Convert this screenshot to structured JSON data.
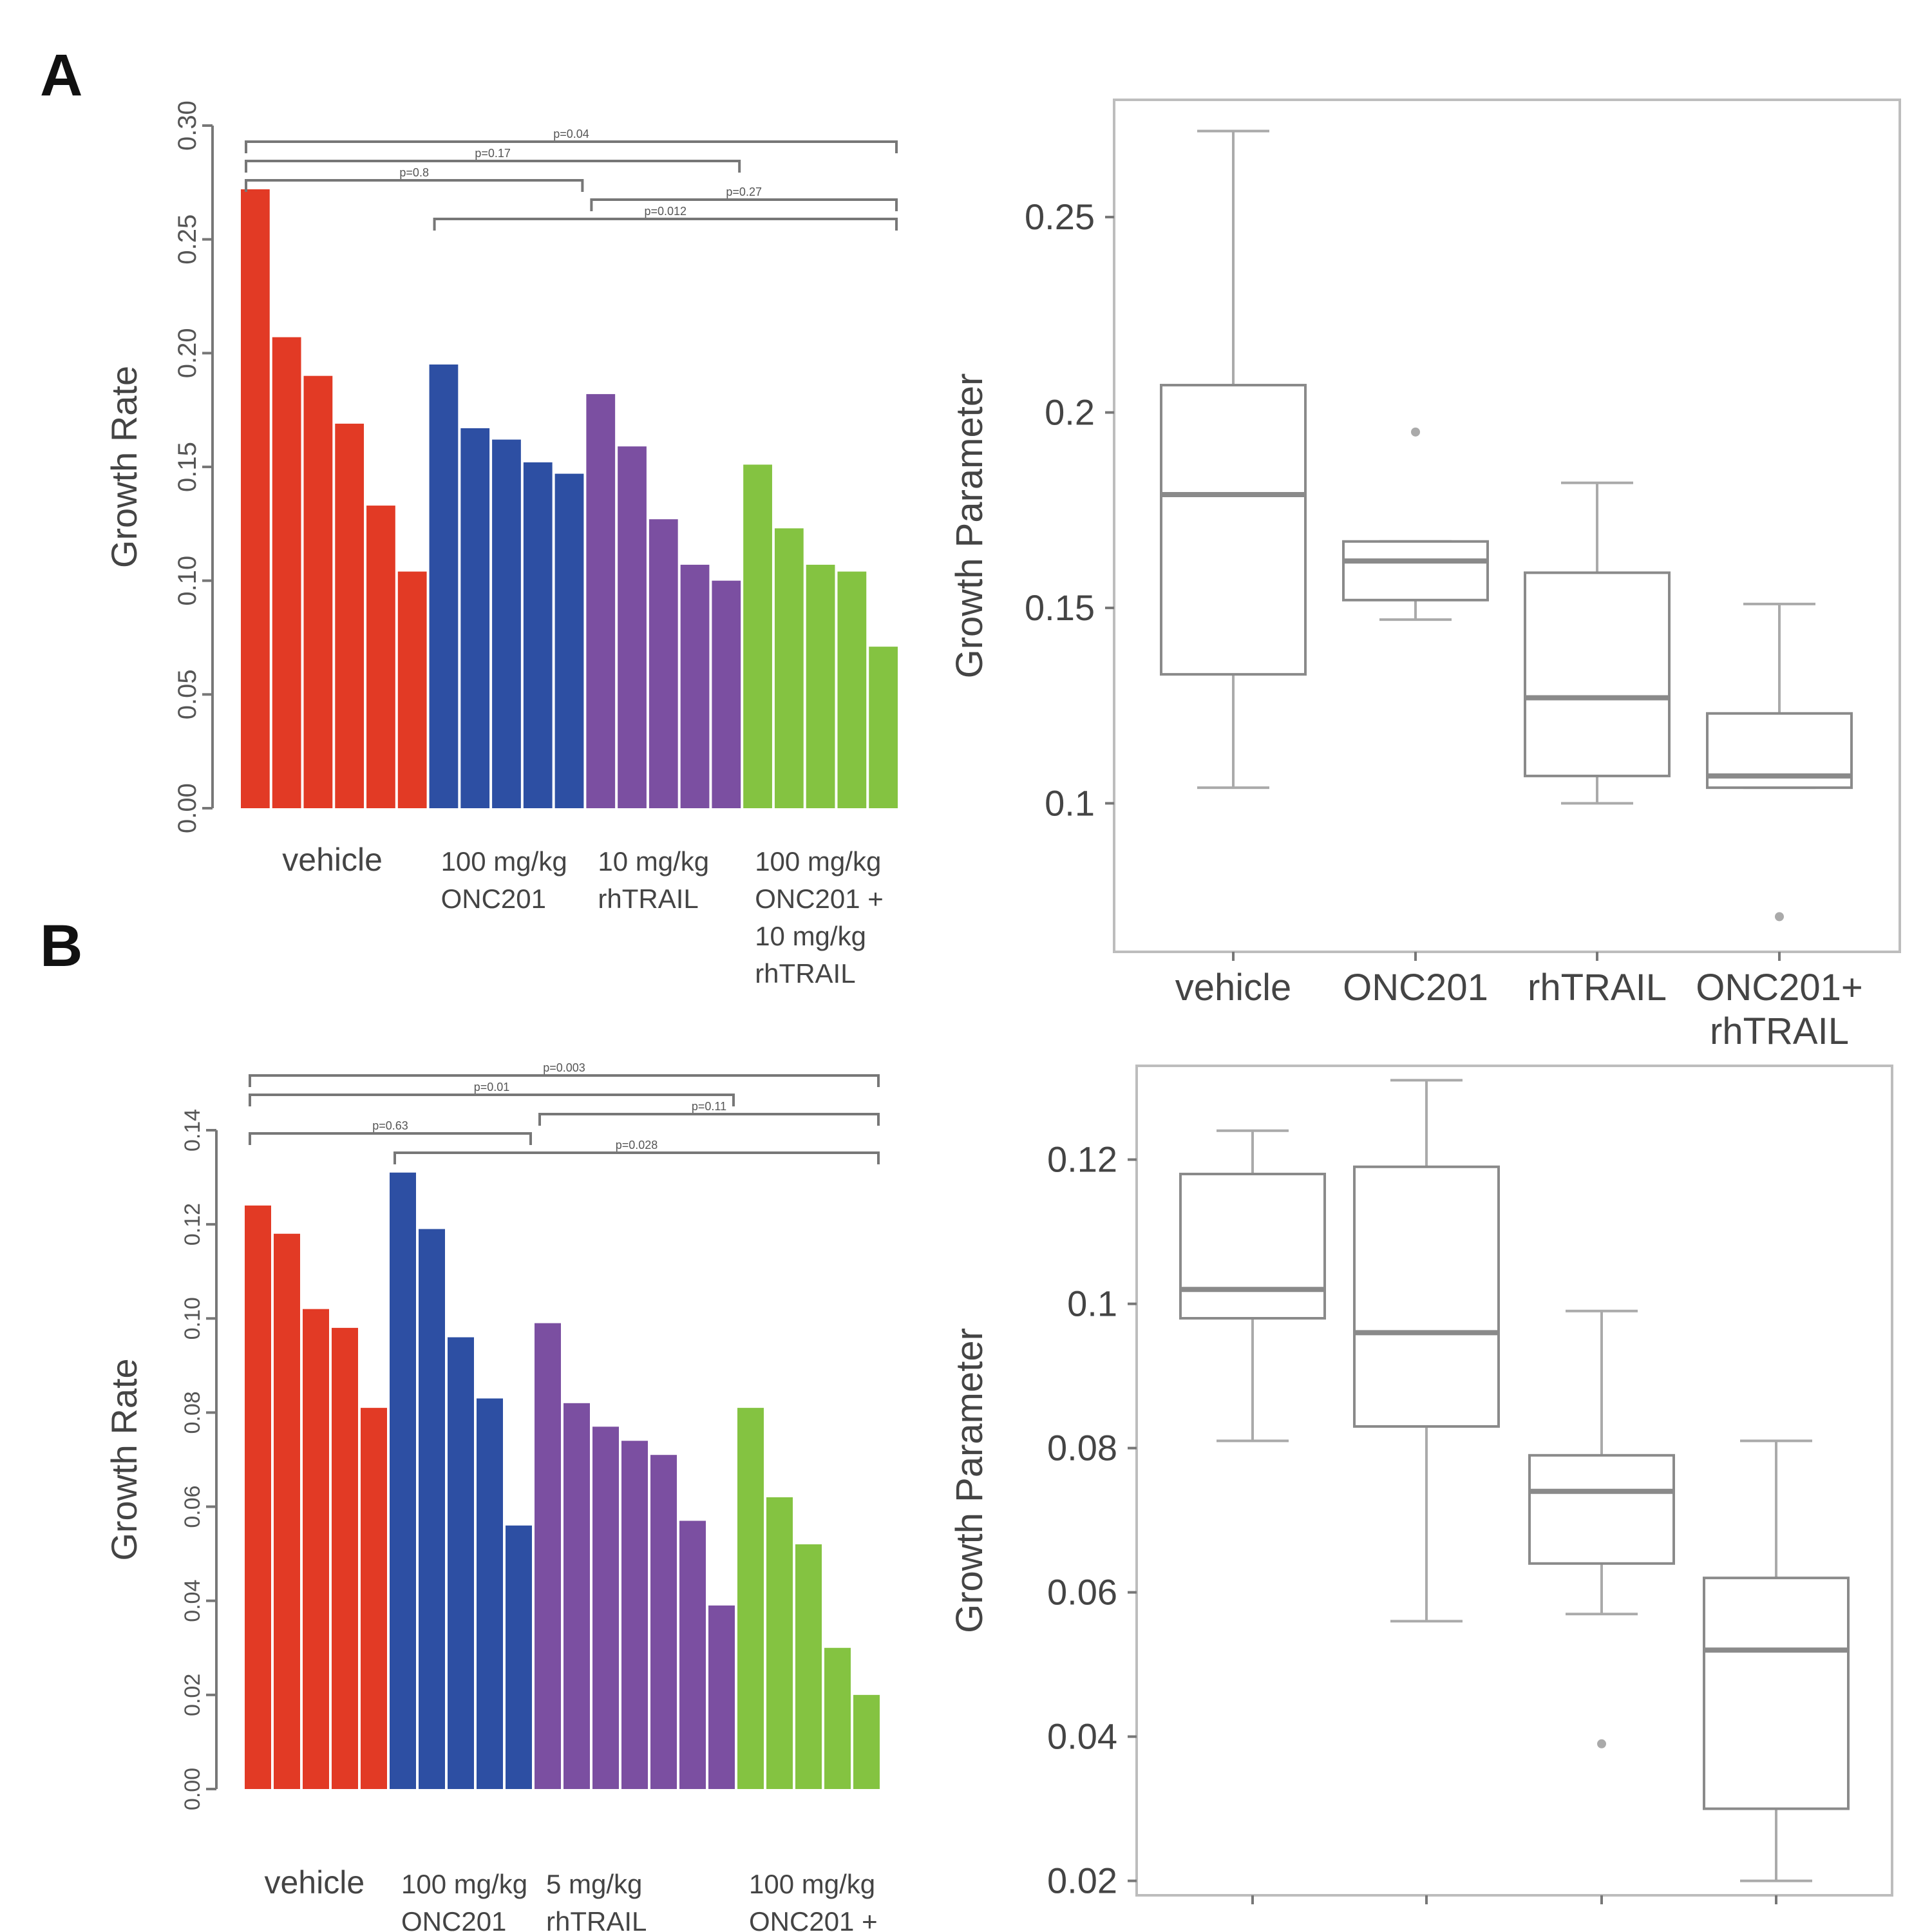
{
  "panel_letters": [
    "A",
    "B"
  ],
  "colors": {
    "vehicle": "#e23a25",
    "onc201": "#2d4fa3",
    "rhtrail": "#7b4fa1",
    "combo": "#84c341",
    "axis": "#777777",
    "box": "#8a8a8a",
    "median": "#8a8a8a"
  },
  "chart_data": [
    {
      "id": "A-bar",
      "type": "bar",
      "ylabel": "Growth Rate",
      "ylim": [
        0,
        0.3
      ],
      "yticks": [
        "0.00",
        "0.05",
        "0.10",
        "0.15",
        "0.20",
        "0.25",
        "0.30"
      ],
      "groups": [
        {
          "key": "vehicle",
          "label": [
            "vehicle"
          ],
          "values": [
            0.272,
            0.207,
            0.19,
            0.169,
            0.133,
            0.104
          ]
        },
        {
          "key": "onc201",
          "label": [
            "100 mg/kg",
            "ONC201"
          ],
          "values": [
            0.195,
            0.167,
            0.162,
            0.152,
            0.147
          ]
        },
        {
          "key": "rhtrail",
          "label": [
            "10 mg/kg",
            "rhTRAIL"
          ],
          "values": [
            0.182,
            0.159,
            0.127,
            0.107,
            0.1
          ]
        },
        {
          "key": "combo",
          "label": [
            "100 mg/kg",
            "ONC201 +",
            "10 mg/kg",
            "rhTRAIL"
          ],
          "values": [
            0.151,
            0.123,
            0.107,
            0.104,
            0.071
          ]
        }
      ],
      "comparisons": [
        {
          "from": 0,
          "to": 3,
          "level": 0,
          "text": "p=0.04"
        },
        {
          "from": 0,
          "to": 2,
          "level": 1,
          "text": "p=0.17"
        },
        {
          "from": 0,
          "to": 1,
          "level": 2,
          "text": "p=0.8"
        },
        {
          "from": 2,
          "to": 3,
          "level": 3,
          "text": "p=0.27"
        },
        {
          "from": 1,
          "to": 3,
          "level": 4,
          "text": "p=0.012"
        }
      ]
    },
    {
      "id": "A-box",
      "type": "box",
      "ylabel": "Growth Parameter",
      "ylim": [
        0.062,
        0.28
      ],
      "yticks": [
        0.1,
        0.15,
        0.2,
        0.25
      ],
      "ytick_labels": [
        "0.1",
        "0.15",
        "0.2",
        "0.25"
      ],
      "categories": [
        [
          "vehicle"
        ],
        [
          "ONC201"
        ],
        [
          "rhTRAIL"
        ],
        [
          "ONC201+",
          "rhTRAIL"
        ]
      ],
      "boxes": [
        {
          "whislo": 0.104,
          "q1": 0.133,
          "med": 0.179,
          "q3": 0.207,
          "whishi": 0.272,
          "fliers": []
        },
        {
          "whislo": 0.147,
          "q1": 0.152,
          "med": 0.162,
          "q3": 0.167,
          "whishi": 0.167,
          "fliers": [
            0.195
          ]
        },
        {
          "whislo": 0.1,
          "q1": 0.107,
          "med": 0.127,
          "q3": 0.159,
          "whishi": 0.182,
          "fliers": []
        },
        {
          "whislo": 0.104,
          "q1": 0.104,
          "med": 0.107,
          "q3": 0.123,
          "whishi": 0.151,
          "fliers": [
            0.071
          ]
        }
      ]
    },
    {
      "id": "B-bar",
      "type": "bar",
      "ylabel": "Growth Rate",
      "ylim": [
        0,
        0.14
      ],
      "yticks": [
        "0.00",
        "0.02",
        "0.04",
        "0.06",
        "0.08",
        "0.10",
        "0.12",
        "0.14"
      ],
      "groups": [
        {
          "key": "vehicle",
          "label": [
            "vehicle"
          ],
          "values": [
            0.124,
            0.118,
            0.102,
            0.098,
            0.081
          ]
        },
        {
          "key": "onc201",
          "label": [
            "100 mg/kg",
            "ONC201"
          ],
          "values": [
            0.131,
            0.119,
            0.096,
            0.083,
            0.056
          ]
        },
        {
          "key": "rhtrail",
          "label": [
            "5 mg/kg",
            "rhTRAIL"
          ],
          "values": [
            0.099,
            0.082,
            0.077,
            0.074,
            0.071,
            0.057,
            0.039
          ]
        },
        {
          "key": "combo",
          "label": [
            "100 mg/kg",
            "ONC201 +"
          ],
          "values": [
            0.081,
            0.062,
            0.052,
            0.03,
            0.02
          ]
        }
      ],
      "comparisons": [
        {
          "from": 0,
          "to": 3,
          "level": 0,
          "text": "p=0.003"
        },
        {
          "from": 0,
          "to": 2,
          "level": 1,
          "text": "p=0.01"
        },
        {
          "from": 2,
          "to": 3,
          "level": 2,
          "text": "p=0.11"
        },
        {
          "from": 0,
          "to": 1,
          "level": 3,
          "text": "p=0.63"
        },
        {
          "from": 1,
          "to": 3,
          "level": 4,
          "text": "p=0.028"
        }
      ]
    },
    {
      "id": "B-box",
      "type": "box",
      "ylabel": "Growth Parameter",
      "ylim": [
        0.018,
        0.133
      ],
      "yticks": [
        0.02,
        0.04,
        0.06,
        0.08,
        0.1,
        0.12
      ],
      "ytick_labels": [
        "0.02",
        "0.04",
        "0.06",
        "0.08",
        "0.1",
        "0.12"
      ],
      "categories": [],
      "boxes": [
        {
          "whislo": 0.081,
          "q1": 0.098,
          "med": 0.102,
          "q3": 0.118,
          "whishi": 0.124,
          "fliers": []
        },
        {
          "whislo": 0.056,
          "q1": 0.083,
          "med": 0.096,
          "q3": 0.119,
          "whishi": 0.131,
          "fliers": []
        },
        {
          "whislo": 0.057,
          "q1": 0.064,
          "med": 0.074,
          "q3": 0.079,
          "whishi": 0.099,
          "fliers": [
            0.039
          ]
        },
        {
          "whislo": 0.02,
          "q1": 0.03,
          "med": 0.052,
          "q3": 0.062,
          "whishi": 0.081,
          "fliers": []
        }
      ]
    }
  ]
}
